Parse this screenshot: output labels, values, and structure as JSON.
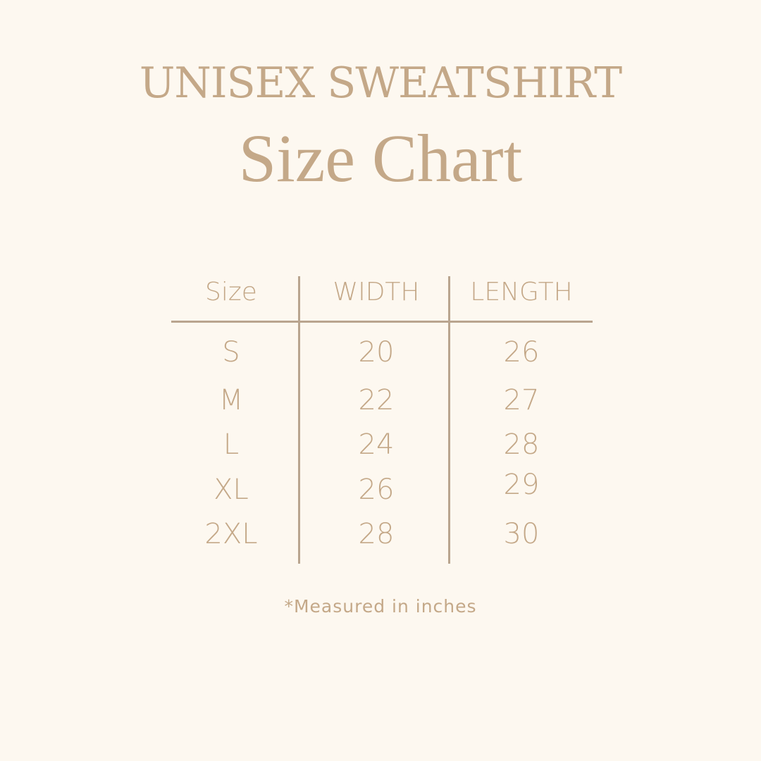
{
  "heading": {
    "line1": "UNISEX SWEATSHIRT",
    "line2": "Size Chart"
  },
  "table": {
    "headers": [
      "Size",
      "WIDTH",
      "LENGTH"
    ],
    "rows": [
      [
        "S",
        "20",
        "26"
      ],
      [
        "M",
        "22",
        "27"
      ],
      [
        "L",
        "24",
        "28"
      ],
      [
        "XL",
        "26",
        "29"
      ],
      [
        "2XL",
        "28",
        "30"
      ]
    ]
  },
  "footnote": "*Measured in inches",
  "colors": {
    "background": "#fdf8f0",
    "text": "#c4a888",
    "lines": "#b9a58f"
  }
}
